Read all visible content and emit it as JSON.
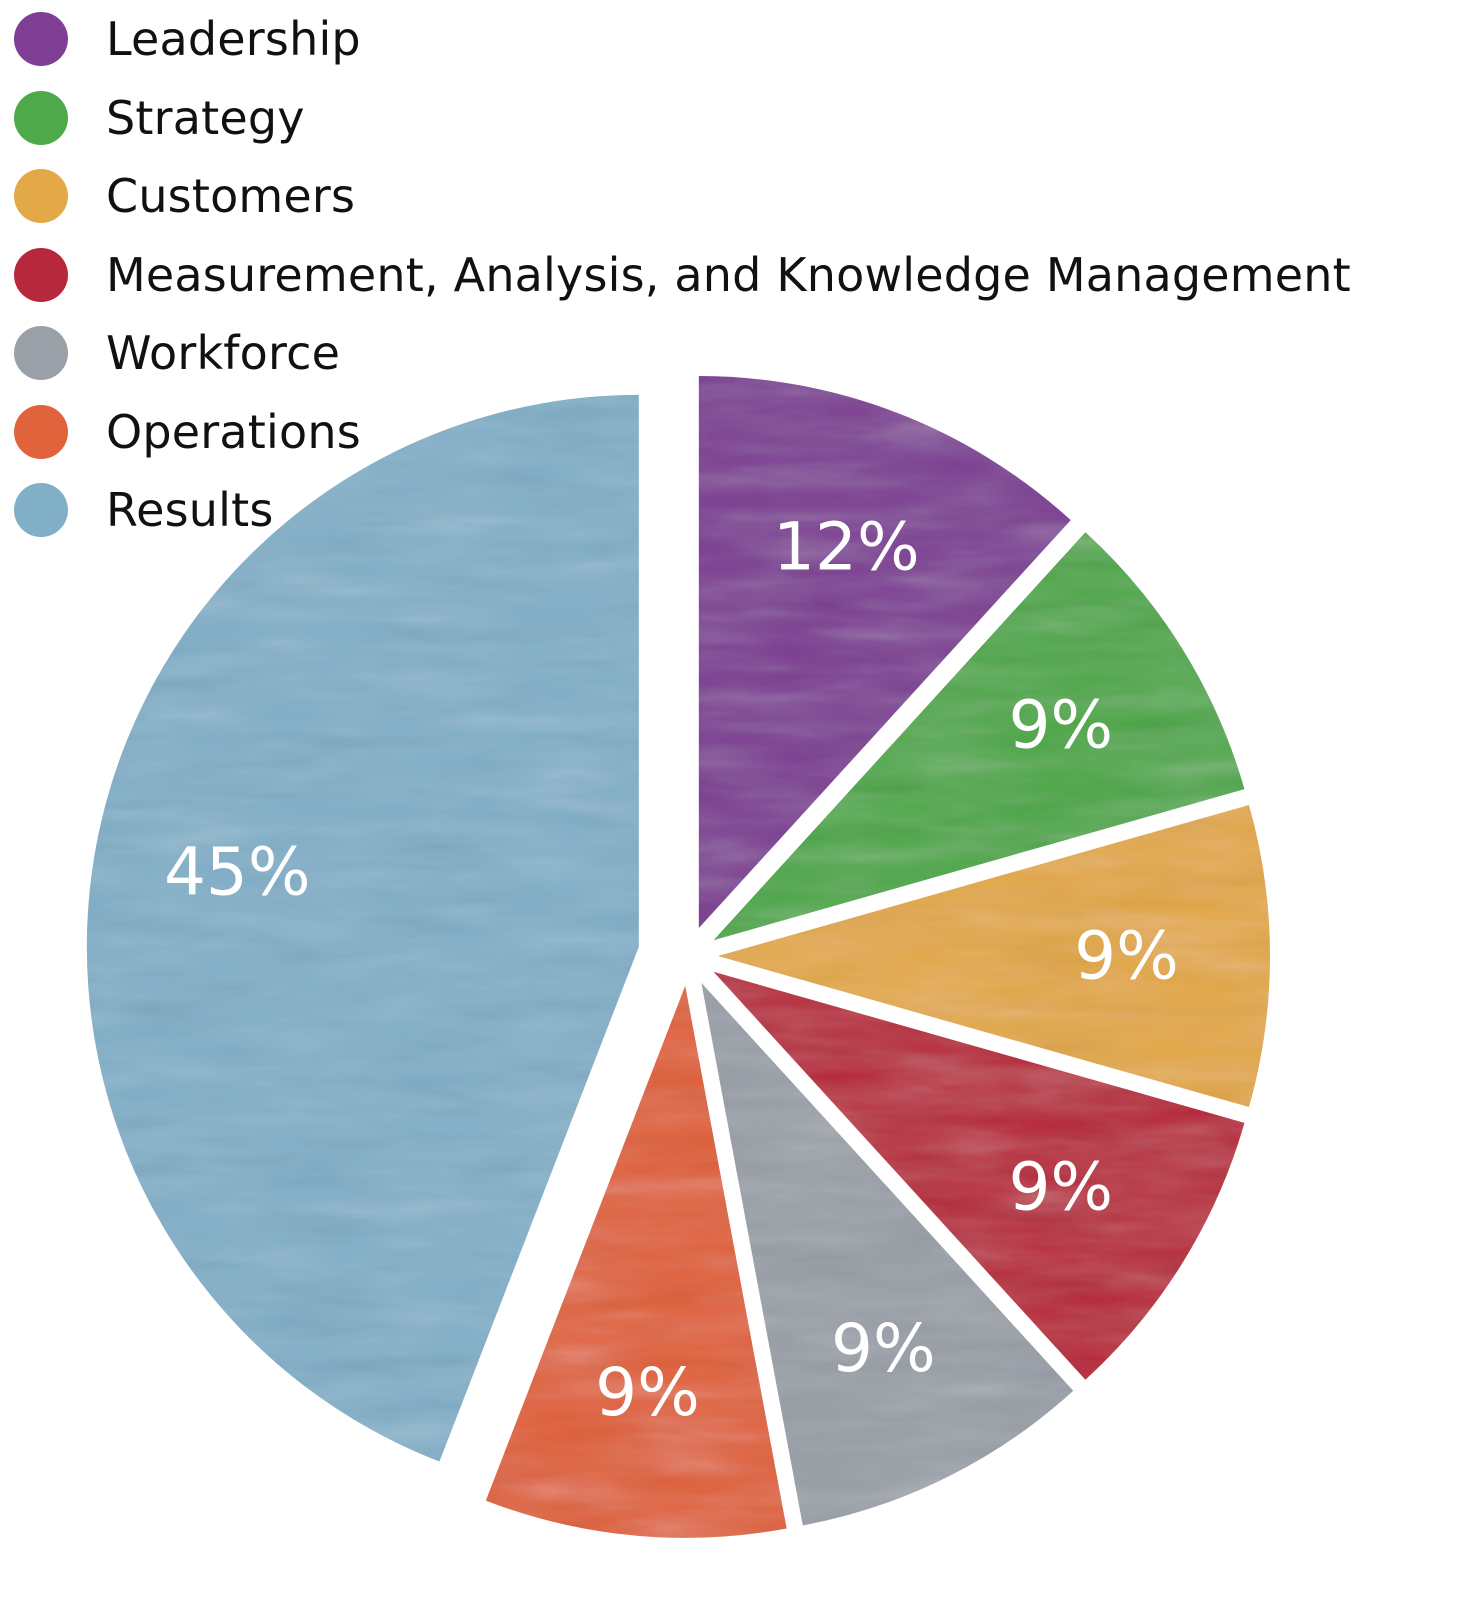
{
  "chart_data": {
    "type": "pie",
    "legend_position": "top-left",
    "slices": [
      {
        "label": "Leadership",
        "value": 12,
        "value_label": "12%",
        "color": "#7e3f94"
      },
      {
        "label": "Strategy",
        "value": 9,
        "value_label": "9%",
        "color": "#4fa84a"
      },
      {
        "label": "Customers",
        "value": 9,
        "value_label": "9%",
        "color": "#e3a848"
      },
      {
        "label": "Measurement, Analysis, and Knowledge Management",
        "value": 9,
        "value_label": "9%",
        "color": "#b8283d"
      },
      {
        "label": "Workforce",
        "value": 9,
        "value_label": "9%",
        "color": "#9aa0a8"
      },
      {
        "label": "Operations",
        "value": 9,
        "value_label": "9%",
        "color": "#e0633c"
      },
      {
        "label": "Results",
        "value": 45,
        "value_label": "45%",
        "color": "#82afc8"
      }
    ]
  }
}
